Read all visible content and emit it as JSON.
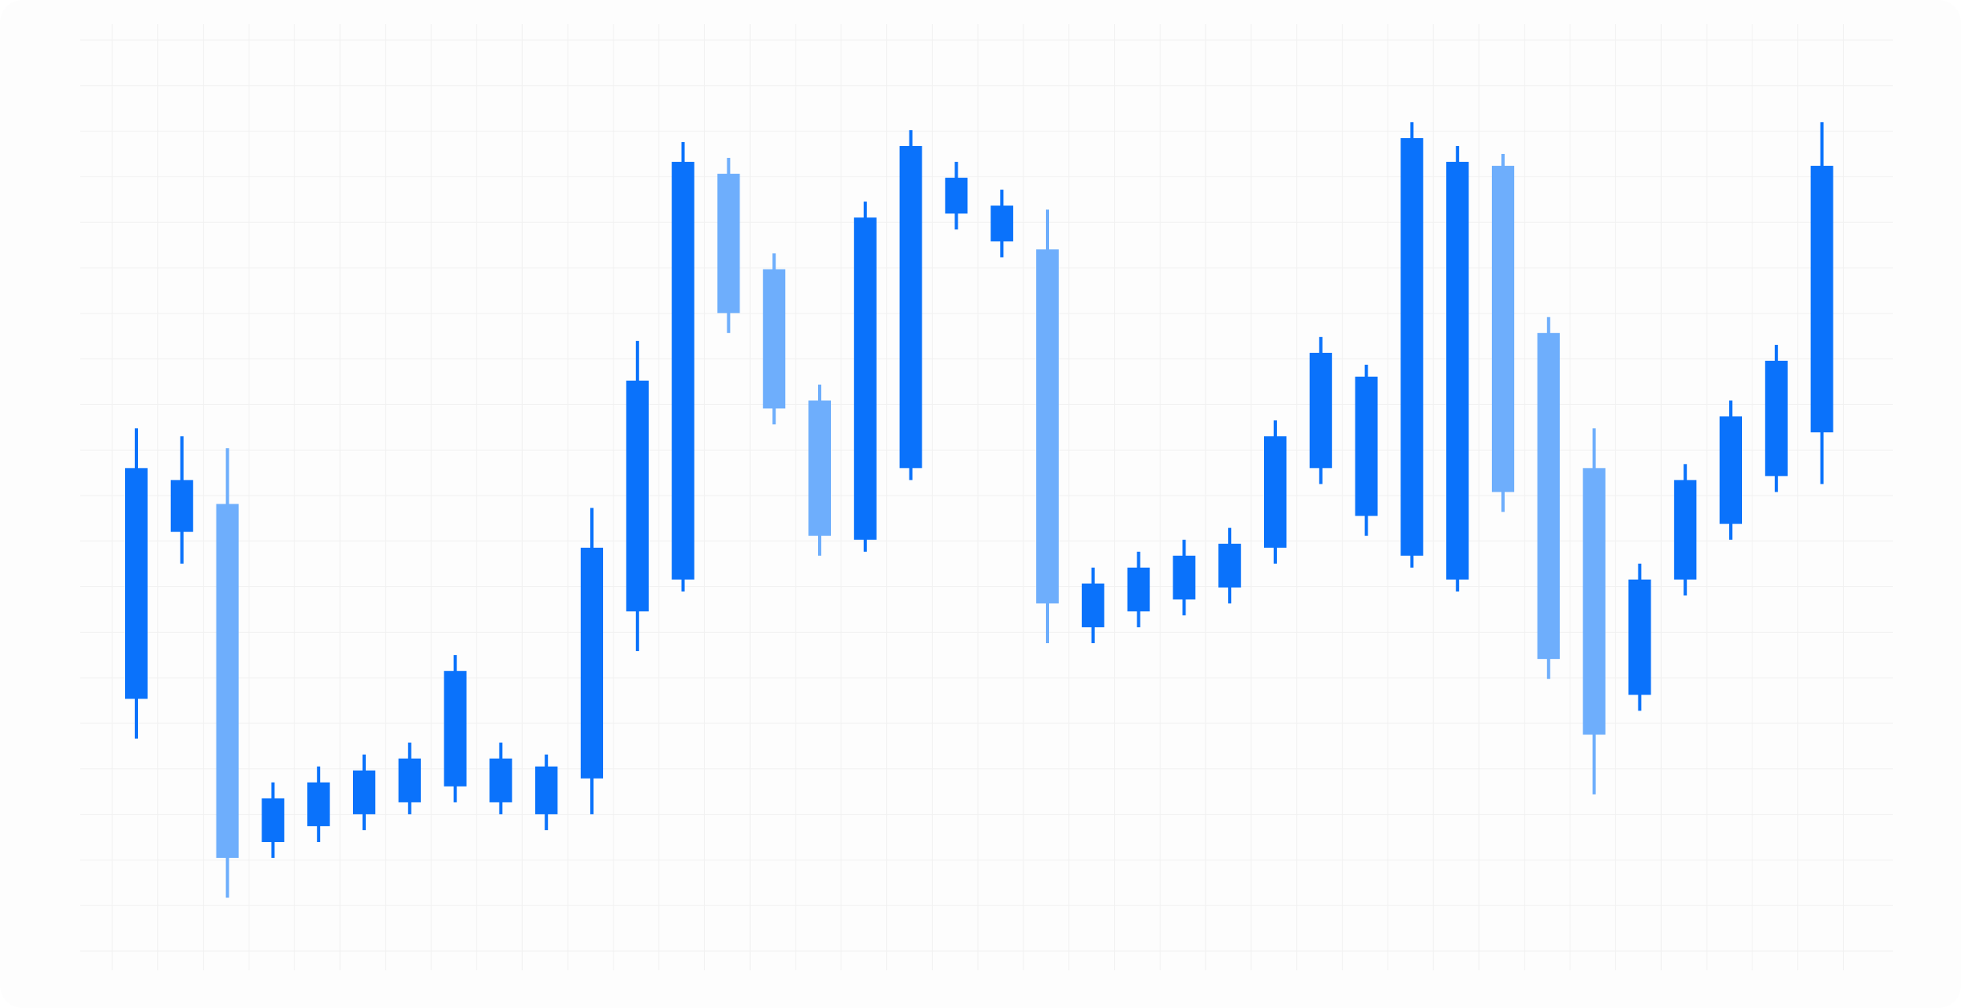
{
  "chart_data": {
    "type": "candlestick",
    "title": "",
    "xlabel": "",
    "ylabel": "",
    "ylim": [
      0,
      100
    ],
    "grid": true,
    "legend": "none",
    "colors": {
      "up": "#0a72fb",
      "down": "#6eaefc",
      "grid": "#f1f1f1",
      "background": "#fdfdfd"
    },
    "candles": [
      {
        "open": 31,
        "close": 60,
        "high": 65,
        "low": 26
      },
      {
        "open": 52,
        "close": 58.5,
        "high": 64,
        "low": 48
      },
      {
        "open": 55.5,
        "close": 11,
        "high": 62.5,
        "low": 6
      },
      {
        "open": 13,
        "close": 18.5,
        "high": 20.5,
        "low": 11
      },
      {
        "open": 15,
        "close": 20.5,
        "high": 22.5,
        "low": 13
      },
      {
        "open": 16.5,
        "close": 22,
        "high": 24,
        "low": 14.5
      },
      {
        "open": 18,
        "close": 23.5,
        "high": 25.5,
        "low": 16.5
      },
      {
        "open": 20,
        "close": 34.5,
        "high": 36.5,
        "low": 18
      },
      {
        "open": 18,
        "close": 23.5,
        "high": 25.5,
        "low": 16.5
      },
      {
        "open": 16.5,
        "close": 22.5,
        "high": 24,
        "low": 14.5
      },
      {
        "open": 21,
        "close": 50,
        "high": 55,
        "low": 16.5
      },
      {
        "open": 42,
        "close": 71,
        "high": 76,
        "low": 37
      },
      {
        "open": 46,
        "close": 98.5,
        "high": 101,
        "low": 44.5
      },
      {
        "open": 97,
        "close": 79.5,
        "high": 99,
        "low": 77
      },
      {
        "open": 85,
        "close": 67.5,
        "high": 87,
        "low": 65.5
      },
      {
        "open": 68.5,
        "close": 51.5,
        "high": 70.5,
        "low": 49
      },
      {
        "open": 51,
        "close": 91.5,
        "high": 93.5,
        "low": 49.5
      },
      {
        "open": 60,
        "close": 100.5,
        "high": 102.5,
        "low": 58.5
      },
      {
        "open": 92,
        "close": 96.5,
        "high": 98.5,
        "low": 90
      },
      {
        "open": 88.5,
        "close": 93,
        "high": 95,
        "low": 86.5
      },
      {
        "open": 87.5,
        "close": 43,
        "high": 92.5,
        "low": 38
      },
      {
        "open": 40,
        "close": 45.5,
        "high": 47.5,
        "low": 38
      },
      {
        "open": 42,
        "close": 47.5,
        "high": 49.5,
        "low": 40
      },
      {
        "open": 43.5,
        "close": 49,
        "high": 51,
        "low": 41.5
      },
      {
        "open": 45,
        "close": 50.5,
        "high": 52.5,
        "low": 43
      },
      {
        "open": 50,
        "close": 64,
        "high": 66,
        "low": 48
      },
      {
        "open": 60,
        "close": 74.5,
        "high": 76.5,
        "low": 58
      },
      {
        "open": 54,
        "close": 71.5,
        "high": 73,
        "low": 51.5
      },
      {
        "open": 49,
        "close": 101.5,
        "high": 103.5,
        "low": 47.5
      },
      {
        "open": 46,
        "close": 98.5,
        "high": 100.5,
        "low": 44.5
      },
      {
        "open": 98,
        "close": 57,
        "high": 99.5,
        "low": 54.5
      },
      {
        "open": 77,
        "close": 36,
        "high": 79,
        "low": 33.5
      },
      {
        "open": 60,
        "close": 26.5,
        "high": 65,
        "low": 19
      },
      {
        "open": 31.5,
        "close": 46,
        "high": 48,
        "low": 29.5
      },
      {
        "open": 46,
        "close": 58.5,
        "high": 60.5,
        "low": 44
      },
      {
        "open": 53,
        "close": 66.5,
        "high": 68.5,
        "low": 51
      },
      {
        "open": 59,
        "close": 73.5,
        "high": 75.5,
        "low": 57
      },
      {
        "open": 64.5,
        "close": 98,
        "high": 103.5,
        "low": 58
      }
    ]
  }
}
